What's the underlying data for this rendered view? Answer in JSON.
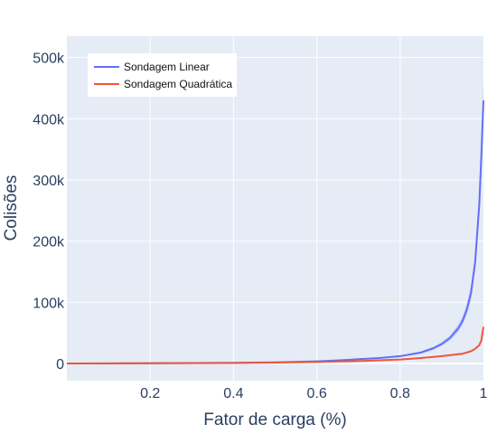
{
  "chart_data": {
    "type": "line",
    "xlabel": "Fator de carga (%)",
    "ylabel": "Colisões",
    "xlim": [
      0,
      1
    ],
    "ylim": [
      -28000,
      535000
    ],
    "grid": true,
    "legend_position": "top-left",
    "x_ticks": [
      {
        "value": 0.2,
        "label": "0.2"
      },
      {
        "value": 0.4,
        "label": "0.4"
      },
      {
        "value": 0.6,
        "label": "0.6"
      },
      {
        "value": 0.8,
        "label": "0.8"
      },
      {
        "value": 1.0,
        "label": "1"
      }
    ],
    "y_ticks": [
      {
        "value": 0,
        "label": "0"
      },
      {
        "value": 100000,
        "label": "100k"
      },
      {
        "value": 200000,
        "label": "200k"
      },
      {
        "value": 300000,
        "label": "300k"
      },
      {
        "value": 400000,
        "label": "400k"
      },
      {
        "value": 500000,
        "label": "500k"
      }
    ],
    "series": [
      {
        "name": "Sondagem Linear",
        "color": "#636efa",
        "band_color": "#636efa",
        "x": [
          0,
          0.1,
          0.2,
          0.3,
          0.4,
          0.5,
          0.6,
          0.65,
          0.7,
          0.75,
          0.8,
          0.85,
          0.88,
          0.9,
          0.92,
          0.94,
          0.95,
          0.96,
          0.97,
          0.98,
          0.99,
          0.995,
          1.0
        ],
        "values": [
          0,
          200,
          500,
          800,
          1200,
          2000,
          3500,
          5000,
          7000,
          9000,
          12000,
          18000,
          25000,
          32000,
          42000,
          58000,
          70000,
          88000,
          115000,
          165000,
          260000,
          340000,
          430000
        ],
        "band_low": [
          0,
          200,
          450,
          750,
          1100,
          1800,
          3200,
          4500,
          6300,
          8100,
          10800,
          16200,
          22500,
          28800,
          37800,
          52000,
          63000,
          79000,
          103000,
          150000,
          240000,
          315000,
          400000
        ],
        "band_high": [
          0,
          220,
          550,
          850,
          1300,
          2200,
          3800,
          5500,
          7700,
          9900,
          13200,
          19800,
          27500,
          35200,
          46200,
          64000,
          77000,
          97000,
          127000,
          180000,
          280000,
          365000,
          460000
        ]
      },
      {
        "name": "Sondagem Quadrática",
        "color": "#ef553b",
        "x": [
          0,
          0.1,
          0.2,
          0.3,
          0.4,
          0.5,
          0.6,
          0.7,
          0.8,
          0.85,
          0.9,
          0.95,
          0.97,
          0.98,
          0.99,
          0.995,
          1.0
        ],
        "values": [
          0,
          150,
          350,
          600,
          900,
          1500,
          2500,
          4000,
          6500,
          9000,
          12000,
          16000,
          20000,
          24000,
          30000,
          38000,
          60000
        ]
      }
    ]
  }
}
